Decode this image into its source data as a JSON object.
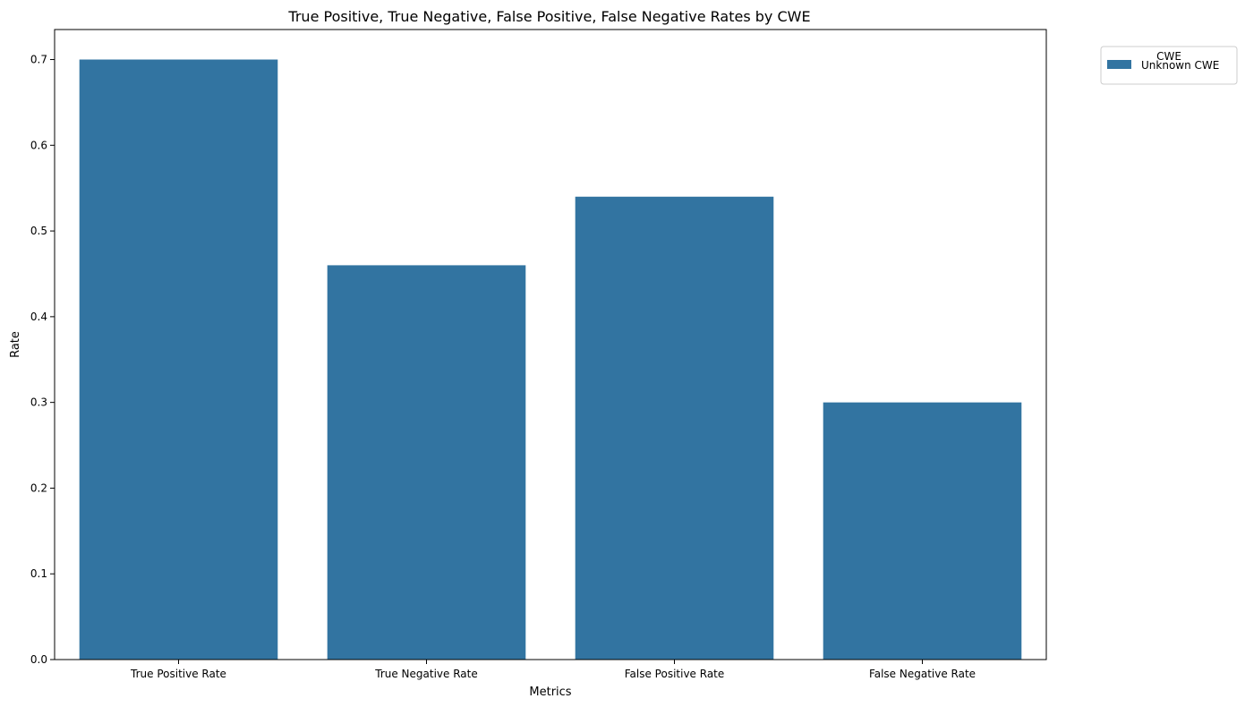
{
  "chart_data": {
    "type": "bar",
    "title": "True Positive, True Negative, False Positive, False Negative Rates by CWE",
    "xlabel": "Metrics",
    "ylabel": "Rate",
    "categories": [
      "True Positive Rate",
      "True Negative Rate",
      "False Positive Rate",
      "False Negative Rate"
    ],
    "series": [
      {
        "name": "Unknown CWE",
        "values": [
          0.7,
          0.46,
          0.54,
          0.3
        ],
        "color": "#3274a1"
      }
    ],
    "ylim": [
      0,
      0.735
    ],
    "yticks": [
      "0.0",
      "0.1",
      "0.2",
      "0.3",
      "0.4",
      "0.5",
      "0.6",
      "0.7"
    ],
    "grid": false,
    "legend": {
      "title": "CWE",
      "placement": "outside-top-right"
    }
  }
}
